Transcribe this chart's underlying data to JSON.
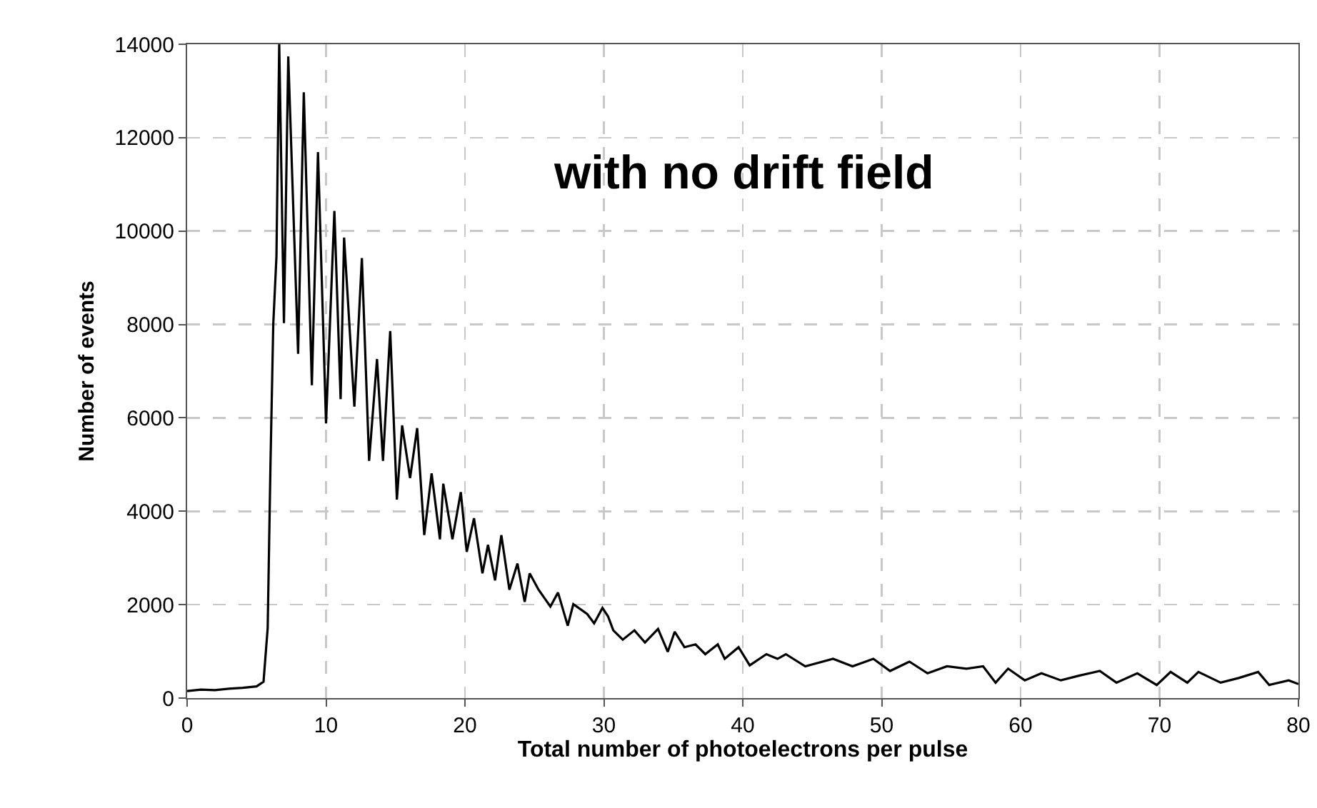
{
  "chart_data": {
    "type": "line",
    "xlabel": "Total number of photoelectrons per pulse",
    "ylabel": "Number of events",
    "annotations": [
      "with no drift field"
    ],
    "x": [
      0,
      1,
      2,
      3,
      4,
      5,
      5.5,
      5.8,
      6.0,
      6.2,
      6.43,
      6.63,
      6.97,
      7.28,
      7.99,
      8.4,
      8.98,
      9.42,
      10.0,
      10.6,
      11.05,
      11.3,
      12.04,
      12.58,
      13.1,
      13.67,
      14.1,
      14.62,
      15.1,
      15.48,
      16.05,
      16.56,
      17.07,
      17.6,
      18.2,
      18.44,
      19.1,
      19.7,
      20.13,
      20.65,
      21.26,
      21.66,
      22.17,
      22.62,
      23.2,
      23.78,
      24.3,
      24.66,
      25.3,
      26.15,
      26.7,
      27.4,
      27.8,
      28.8,
      29.3,
      29.9,
      30.3,
      30.68,
      31.36,
      32.2,
      32.96,
      33.9,
      34.6,
      35.1,
      35.8,
      36.6,
      37.3,
      38.2,
      38.7,
      39.7,
      40.5,
      41.7,
      42.5,
      43.1,
      44.5,
      46.5,
      47.9,
      49.4,
      50.6,
      52,
      53.3,
      54.7,
      56.1,
      57.3,
      58.2,
      59.1,
      60.3,
      61.5,
      62.9,
      64.2,
      65.7,
      66.9,
      68.4,
      69.8,
      70.8,
      72,
      72.8,
      74.4,
      75.7,
      77.1,
      77.9,
      79.3,
      80
    ],
    "series": [
      {
        "color": "#000000",
        "values": [
          150,
          180,
          170,
          200,
          220,
          250,
          350,
          1500,
          5000,
          8000,
          9450,
          14000,
          8030,
          13740,
          7370,
          12970,
          6700,
          11690,
          5880,
          10430,
          6400,
          9860,
          6240,
          9420,
          5080,
          7260,
          5080,
          7860,
          4250,
          5840,
          4710,
          5780,
          3490,
          4810,
          3400,
          4590,
          3400,
          4410,
          3130,
          3850,
          2670,
          3280,
          2520,
          3490,
          2320,
          2880,
          2060,
          2670,
          2320,
          1960,
          2260,
          1550,
          2010,
          1800,
          1600,
          1930,
          1750,
          1450,
          1250,
          1450,
          1190,
          1480,
          990,
          1420,
          1090,
          1150,
          940,
          1150,
          840,
          1090,
          700,
          940,
          840,
          940,
          680,
          840,
          680,
          840,
          580,
          780,
          530,
          680,
          630,
          680,
          330,
          630,
          380,
          530,
          380,
          480,
          580,
          330,
          530,
          280,
          560,
          330,
          560,
          330,
          430,
          560,
          280,
          380,
          300
        ]
      }
    ],
    "xlim": [
      0,
      80
    ],
    "xticks": [
      0,
      10,
      20,
      30,
      40,
      50,
      60,
      70,
      80
    ],
    "ylim": [
      0,
      14000
    ],
    "yticks": [
      0,
      2000,
      4000,
      6000,
      8000,
      10000,
      12000,
      14000
    ],
    "grid": true,
    "marker": "none",
    "line_style": "solid"
  }
}
